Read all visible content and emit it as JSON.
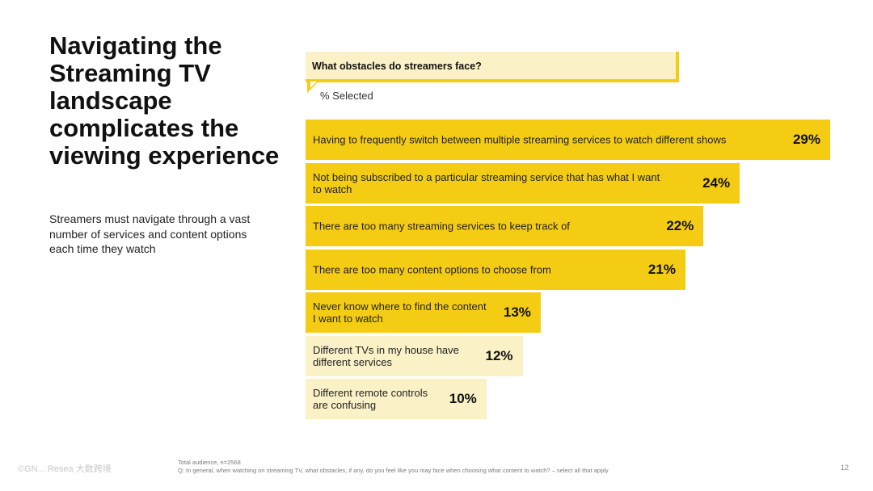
{
  "headline": "Navigating the Streaming TV landscape complicates the viewing experience",
  "subhead": "Streamers must navigate through a vast number of services and content options each time they watch",
  "question": "What obstacles do streamers face?",
  "measure_label": "% Selected",
  "colors": {
    "accent": "#f5cc14",
    "pale": "#faf1c6"
  },
  "chart_data": {
    "type": "bar",
    "orientation": "horizontal",
    "title": "What obstacles do streamers face?",
    "xlabel": "% Selected",
    "ylabel": "",
    "xlim": [
      0,
      29
    ],
    "categories": [
      "Having to frequently switch between multiple streaming services to watch different shows",
      "Not being subscribed to a particular streaming service that has what I want to watch",
      "There are too many streaming services to keep track of",
      "There are too many content options to choose from",
      "Never know where to find the content I want to watch",
      "Different TVs in my house have different services",
      "Different remote controls are confusing"
    ],
    "values": [
      29,
      24,
      22,
      21,
      13,
      12,
      10
    ],
    "value_labels": [
      "29%",
      "24%",
      "22%",
      "21%",
      "13%",
      "12%",
      "10%"
    ],
    "bar_colors": [
      "#f5cc14",
      "#f5cc14",
      "#f5cc14",
      "#f5cc14",
      "#f5cc14",
      "#faf1c6",
      "#faf1c6"
    ]
  },
  "footer": {
    "logo_text": "©GN... Resea",
    "watermark": "大数跨境",
    "base_note": "Total audience, n=2568",
    "question_note": "Q: In general, when watching on streaming TV, what obstacles, if any, do you feel like you may face when choosing what content to watch? – select all that apply",
    "page_number": "12"
  }
}
